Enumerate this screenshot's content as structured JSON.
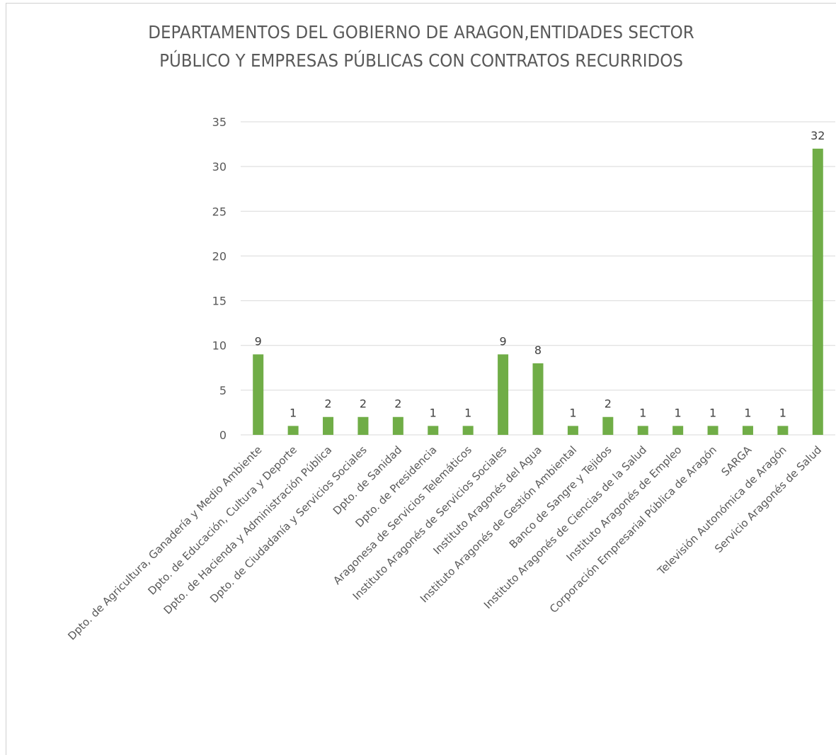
{
  "chart_data": {
    "type": "bar",
    "title_lines": [
      "DEPARTAMENTOS DEL GOBIERNO DE ARAGON,ENTIDADES SECTOR",
      "PÚBLICO Y EMPRESAS PÚBLICAS CON CONTRATOS RECURRIDOS"
    ],
    "categories": [
      "Dpto. de Agricultura, Ganadería y Medio Ambiente",
      "Dpto. de Educación, Cultura y Deporte",
      "Dpto. de Hacienda y Administración Pública",
      "Dpto. de Ciudadanía y Servicios Sociales",
      "Dpto. de Sanidad",
      "Dpto. de Presidencia",
      "Aragonesa de Servicios Telemáticos",
      "Instituto Aragonés de Servicios Sociales",
      "Instituto Aragonés del Agua",
      "Instituto Aragonés de Gestión Ambiental",
      "Banco de Sangre y Tejidos",
      "Instituto Aragonés de Ciencias de la Salud",
      "Instituto Aragonés de Empleo",
      "Corporación Empresarial Pública de Aragón",
      "SARGA",
      "Televisión Autonómica de Aragón",
      "Servicio Aragonés de Salud"
    ],
    "values": [
      9,
      1,
      2,
      2,
      2,
      1,
      1,
      9,
      8,
      1,
      2,
      1,
      1,
      1,
      1,
      1,
      32
    ],
    "ylim": [
      0,
      35
    ],
    "yticks": [
      0,
      5,
      10,
      15,
      20,
      25,
      30,
      35
    ],
    "grid": true,
    "legend": "none",
    "bar_color": "#70ad47",
    "grid_color": "#d9d9d9"
  }
}
